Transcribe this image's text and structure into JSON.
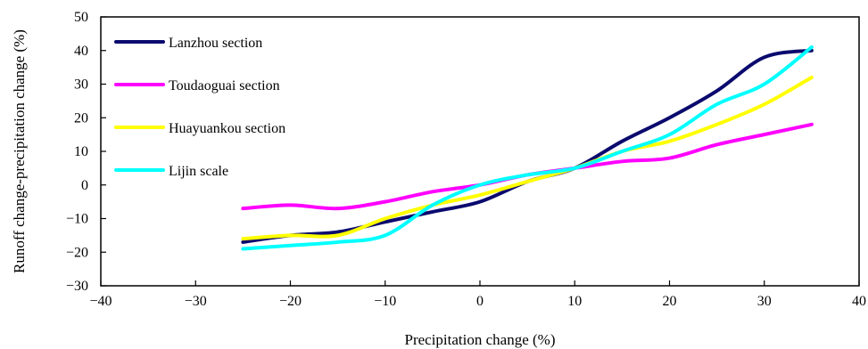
{
  "chart_data": {
    "type": "line",
    "xlabel": "Precipitation change (%)",
    "ylabel": "Runoff change-precipitation change (%)",
    "xlim": [
      -40,
      40
    ],
    "ylim": [
      -30,
      50
    ],
    "xticks": [
      -40,
      -30,
      -20,
      -10,
      0,
      10,
      20,
      30,
      40
    ],
    "yticks": [
      -30,
      -20,
      -10,
      0,
      10,
      20,
      30,
      40,
      50
    ],
    "x_tick_labels": [
      "−40",
      "−30",
      "−20",
      "−10",
      "0",
      "10",
      "20",
      "30",
      "40"
    ],
    "y_tick_labels": [
      "−30",
      "−20",
      "−10",
      "0",
      "10",
      "20",
      "30",
      "40",
      "50"
    ],
    "grid": false,
    "legend_position": "top-left",
    "series": [
      {
        "name": "Lanzhou section",
        "color": "#0a0a6e",
        "x": [
          -25,
          -20,
          -15,
          -10,
          -5,
          0,
          5,
          10,
          15,
          20,
          25,
          30,
          35
        ],
        "y": [
          -17,
          -15,
          -14,
          -11,
          -8,
          -5,
          1,
          5,
          13,
          20,
          28,
          38,
          40
        ]
      },
      {
        "name": "Toudaoguai section",
        "color": "#ff00ff",
        "x": [
          -25,
          -20,
          -15,
          -10,
          -5,
          0,
          5,
          10,
          15,
          20,
          25,
          30,
          35
        ],
        "y": [
          -7,
          -6,
          -7,
          -5,
          -2,
          0,
          3,
          5,
          7,
          8,
          12,
          15,
          18
        ]
      },
      {
        "name": "Huayuankou section",
        "color": "#ffff00",
        "x": [
          -25,
          -20,
          -15,
          -10,
          -5,
          0,
          5,
          10,
          15,
          20,
          25,
          30,
          35
        ],
        "y": [
          -16,
          -15,
          -15,
          -10,
          -6,
          -3,
          1,
          5,
          10,
          13,
          18,
          24,
          32
        ]
      },
      {
        "name": "Lijin scale",
        "color": "#00ffff",
        "x": [
          -25,
          -20,
          -15,
          -10,
          -5,
          0,
          5,
          10,
          15,
          20,
          25,
          30,
          35
        ],
        "y": [
          -19,
          -18,
          -17,
          -15,
          -6,
          0,
          3,
          5,
          10,
          15,
          24,
          30,
          41
        ]
      }
    ]
  }
}
